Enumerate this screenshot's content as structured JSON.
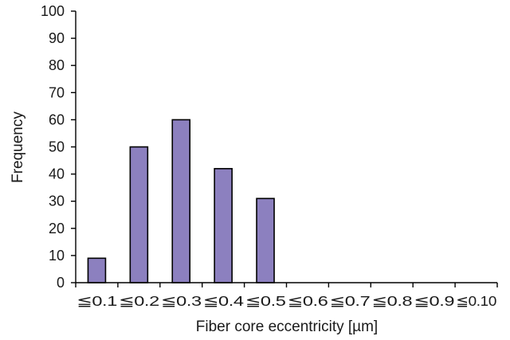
{
  "chart_data": {
    "type": "bar",
    "title": "",
    "xlabel": "Fiber core eccentricity [µm]",
    "ylabel": "Frequency",
    "categories": [
      "≦0.1",
      "≦0.2",
      "≦0.3",
      "≦0.4",
      "≦0.5",
      "≦0.6",
      "≦0.7",
      "≦0.8",
      "≦0.9",
      "≦0.10"
    ],
    "values": [
      9,
      50,
      60,
      42,
      31,
      0,
      0,
      0,
      0,
      0
    ],
    "ylim": [
      0,
      100
    ],
    "yticks": [
      0,
      10,
      20,
      30,
      40,
      50,
      60,
      70,
      80,
      90,
      100
    ],
    "grid": false,
    "legend": "none",
    "bar_color": "#8c80bf"
  }
}
